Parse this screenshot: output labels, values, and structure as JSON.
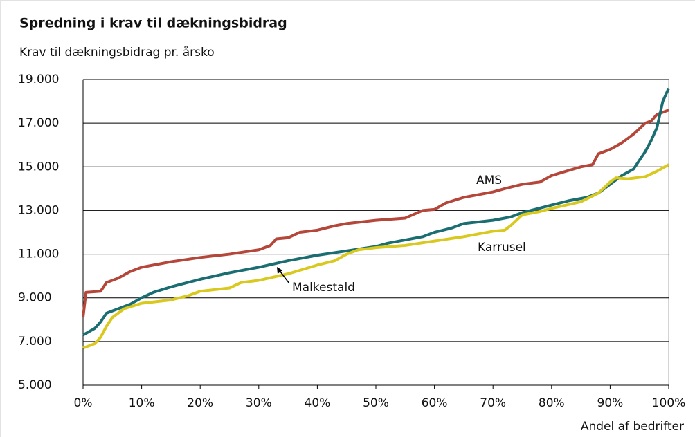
{
  "chart_data": {
    "type": "line",
    "title": "Spredning i krav til dækningsbidrag",
    "ylabel": "Krav til dækningsbidrag pr. årsko",
    "xlabel": "Andel af bedrifter",
    "xlim": [
      0,
      100
    ],
    "ylim": [
      5000,
      19000
    ],
    "xticks": [
      {
        "value": 0,
        "label": "0%"
      },
      {
        "value": 10,
        "label": "10%"
      },
      {
        "value": 20,
        "label": "20%"
      },
      {
        "value": 30,
        "label": "30%"
      },
      {
        "value": 40,
        "label": "40%"
      },
      {
        "value": 50,
        "label": "50%"
      },
      {
        "value": 60,
        "label": "60%"
      },
      {
        "value": 70,
        "label": "70%"
      },
      {
        "value": 80,
        "label": "80%"
      },
      {
        "value": 90,
        "label": "90%"
      },
      {
        "value": 100,
        "label": "100%"
      }
    ],
    "yticks": [
      {
        "value": 5000,
        "label": "5.000"
      },
      {
        "value": 7000,
        "label": "7.000"
      },
      {
        "value": 9000,
        "label": "9.000"
      },
      {
        "value": 11000,
        "label": "11.000"
      },
      {
        "value": 13000,
        "label": "13.000"
      },
      {
        "value": 15000,
        "label": "15.000"
      },
      {
        "value": 17000,
        "label": "17.000"
      },
      {
        "value": 19000,
        "label": "19.000"
      }
    ],
    "grid": true,
    "annotations": [
      "AMS",
      "Karrusel",
      "Malkestald"
    ],
    "series": [
      {
        "name": "AMS",
        "color": "#b5473a",
        "x": [
          0,
          0.5,
          3,
          4,
          6,
          8,
          10,
          15,
          20,
          25,
          30,
          32,
          33,
          35,
          37,
          40,
          43,
          45,
          50,
          55,
          58,
          60,
          62,
          65,
          70,
          72,
          75,
          78,
          80,
          85,
          87,
          88,
          90,
          92,
          94,
          96,
          97,
          98,
          100
        ],
        "values": [
          8100,
          9250,
          9300,
          9700,
          9900,
          10200,
          10400,
          10650,
          10850,
          11000,
          11200,
          11400,
          11700,
          11750,
          12000,
          12100,
          12300,
          12400,
          12550,
          12650,
          13000,
          13050,
          13350,
          13600,
          13850,
          14000,
          14200,
          14300,
          14600,
          15000,
          15100,
          15600,
          15800,
          16100,
          16500,
          17000,
          17100,
          17400,
          17600
        ]
      },
      {
        "name": "Malkestald",
        "color": "#1a6e72",
        "x": [
          0,
          2,
          3,
          4,
          6,
          8,
          10,
          12,
          15,
          20,
          25,
          30,
          35,
          40,
          45,
          50,
          52,
          55,
          58,
          60,
          63,
          65,
          70,
          73,
          75,
          80,
          83,
          86,
          88,
          90,
          92,
          94,
          95,
          96,
          97,
          98,
          99,
          100
        ],
        "values": [
          7300,
          7600,
          7900,
          8300,
          8500,
          8700,
          9000,
          9250,
          9500,
          9850,
          10150,
          10400,
          10700,
          10950,
          11150,
          11350,
          11500,
          11650,
          11800,
          12000,
          12200,
          12400,
          12550,
          12700,
          12900,
          13250,
          13450,
          13600,
          13800,
          14200,
          14600,
          14900,
          15300,
          15700,
          16200,
          16800,
          18000,
          18600
        ]
      },
      {
        "name": "Karrusel",
        "color": "#d9c81e",
        "x": [
          0,
          2,
          3,
          4,
          5,
          7,
          10,
          15,
          18,
          20,
          25,
          27,
          30,
          35,
          40,
          43,
          45,
          47,
          50,
          55,
          60,
          65,
          70,
          72,
          73,
          75,
          78,
          80,
          85,
          88,
          90,
          91,
          93,
          96,
          98,
          100
        ],
        "values": [
          6700,
          6900,
          7200,
          7700,
          8100,
          8500,
          8750,
          8900,
          9100,
          9300,
          9450,
          9700,
          9800,
          10100,
          10500,
          10700,
          11000,
          11200,
          11300,
          11400,
          11600,
          11800,
          12050,
          12100,
          12300,
          12800,
          12950,
          13100,
          13400,
          13800,
          14300,
          14500,
          14450,
          14550,
          14800,
          15100
        ]
      }
    ]
  }
}
